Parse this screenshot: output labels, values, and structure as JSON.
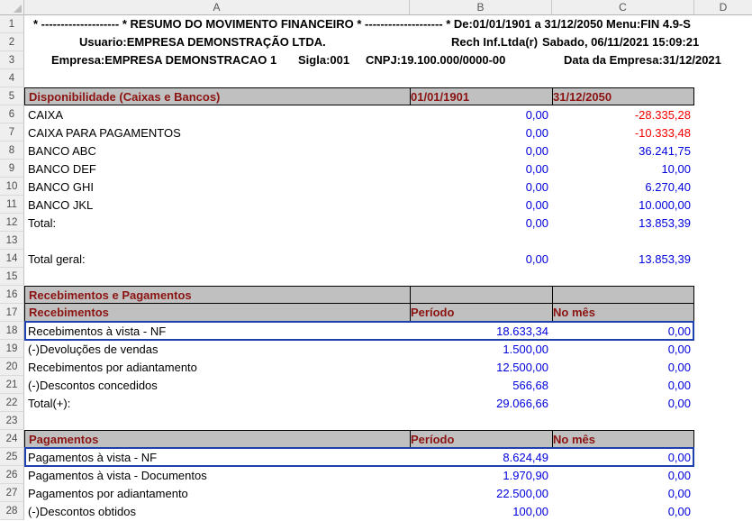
{
  "sheet": {
    "title": "RESUMO DO MOVIMENTO FINANCEIRO",
    "column_headers": [
      "A",
      "B",
      "C",
      "D"
    ],
    "top_lines": {
      "line1": "* -------------------- * RESUMO DO MOVIMENTO FINANCEIRO * -------------------- * De:01/01/1901 a 31/12/2050 Menu:FIN 4.9-S",
      "line2_user": "Usuario:EMPRESA DEMONSTRAÇÃO LTDA.",
      "line2_vendor": "Rech Inf.Ltda(r)",
      "line2_datetime": "Sabado, 06/11/2021 15:09:21",
      "line3_company": "Empresa:EMPRESA DEMONSTRACAO 1",
      "line3_sigla": "Sigla:001",
      "line3_cnpj": "CNPJ:19.100.000/0000-00",
      "line3_company_date": "Data da Empresa:31/12/2021"
    },
    "rows": [
      {
        "n": 5,
        "type": "band",
        "a": "Disponibilidade (Caixas e Bancos)",
        "b": "01/01/1901",
        "c": "31/12/2050"
      },
      {
        "n": 6,
        "type": "data",
        "a": "CAIXA",
        "b": "0,00",
        "c": "-28.335,28"
      },
      {
        "n": 7,
        "type": "data",
        "a": "CAIXA PARA PAGAMENTOS",
        "b": "0,00",
        "c": "-10.333,48"
      },
      {
        "n": 8,
        "type": "data",
        "a": "BANCO ABC",
        "b": "0,00",
        "c": "36.241,75"
      },
      {
        "n": 9,
        "type": "data",
        "a": "BANCO DEF",
        "b": "0,00",
        "c": "10,00"
      },
      {
        "n": 10,
        "type": "data",
        "a": "BANCO GHI",
        "b": "0,00",
        "c": "6.270,40"
      },
      {
        "n": 11,
        "type": "data",
        "a": "BANCO JKL",
        "b": "0,00",
        "c": "10.000,00"
      },
      {
        "n": 12,
        "type": "data",
        "a": "Total:",
        "b": "0,00",
        "c": "13.853,39"
      },
      {
        "n": 14,
        "type": "data",
        "a": "Total geral:",
        "b": "0,00",
        "c": "13.853,39"
      },
      {
        "n": 16,
        "type": "band",
        "a": "Recebimentos e Pagamentos",
        "b": "",
        "c": ""
      },
      {
        "n": 17,
        "type": "band",
        "a": "Recebimentos",
        "b": "Período",
        "c": "No mês"
      },
      {
        "n": 18,
        "type": "data",
        "a": "Recebimentos à vista - NF",
        "b": "18.633,34",
        "c": "0,00",
        "highlight": true
      },
      {
        "n": 19,
        "type": "data",
        "a": "(-)Devoluções de vendas",
        "b": "1.500,00",
        "c": "0,00"
      },
      {
        "n": 20,
        "type": "data",
        "a": "Recebimentos por adiantamento",
        "b": "12.500,00",
        "c": "0,00"
      },
      {
        "n": 21,
        "type": "data",
        "a": "(-)Descontos concedidos",
        "b": "566,68",
        "c": "0,00"
      },
      {
        "n": 22,
        "type": "data",
        "a": "Total(+):",
        "b": "29.066,66",
        "c": "0,00"
      },
      {
        "n": 24,
        "type": "band",
        "a": "Pagamentos",
        "b": "Período",
        "c": "No mês"
      },
      {
        "n": 25,
        "type": "data",
        "a": "Pagamentos à vista - NF",
        "b": "8.624,49",
        "c": "0,00",
        "highlight": true
      },
      {
        "n": 26,
        "type": "data",
        "a": "Pagamentos à vista - Documentos",
        "b": "1.970,90",
        "c": "0,00"
      },
      {
        "n": 27,
        "type": "data",
        "a": "Pagamentos por adiantamento",
        "b": "22.500,00",
        "c": "0,00"
      },
      {
        "n": 28,
        "type": "data",
        "a": "(-)Descontos obtidos",
        "b": "100,00",
        "c": "0,00"
      }
    ],
    "visible_row_count": 28
  },
  "colors": {
    "band_bg": "#c0c0c0",
    "band_text": "#8b1412",
    "value_blue": "#0000dc",
    "value_red": "#f50000",
    "selection_border_blue": "#1e3fae"
  }
}
